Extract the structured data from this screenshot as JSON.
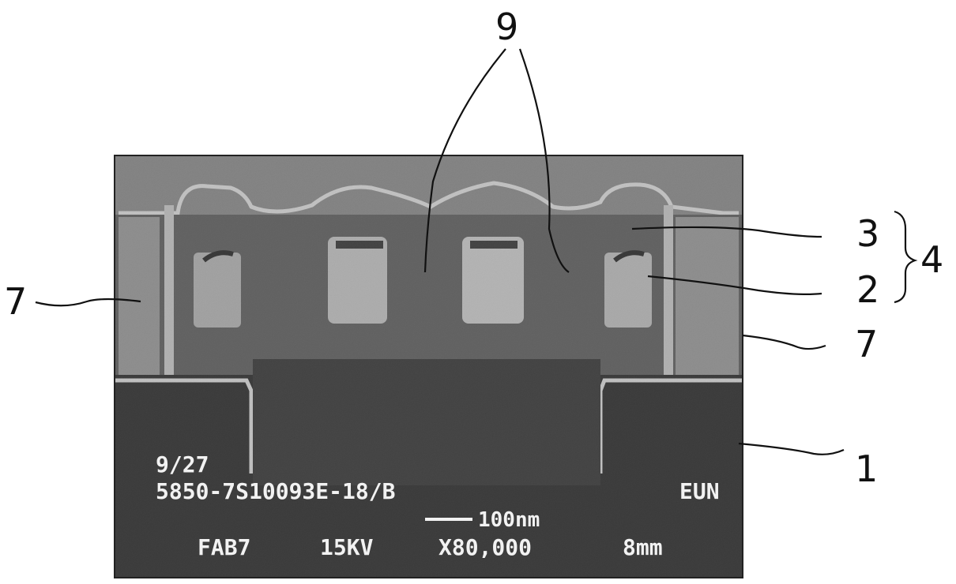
{
  "figure": {
    "reference_labels": {
      "label_9": "9",
      "label_3": "3",
      "label_4": "4",
      "label_2": "2",
      "label_7_left": "7",
      "label_7_right": "7",
      "label_1": "1"
    },
    "sem_overlay": {
      "date": "9/27",
      "sample_id": "5850-7S10093E-18/B",
      "operator": "EUN",
      "scale_bar_text": "100nm",
      "fab": "FAB7",
      "voltage": "15KV",
      "magnification": "X80,000",
      "working_distance": "8mm"
    },
    "colors": {
      "background": "#ffffff",
      "line_art": "#111111",
      "sem_dark": "#1b1b1b",
      "sem_mid": "#5a5a5a",
      "sem_light": "#d0d0d0",
      "sem_text": "#f2f2f2"
    }
  }
}
